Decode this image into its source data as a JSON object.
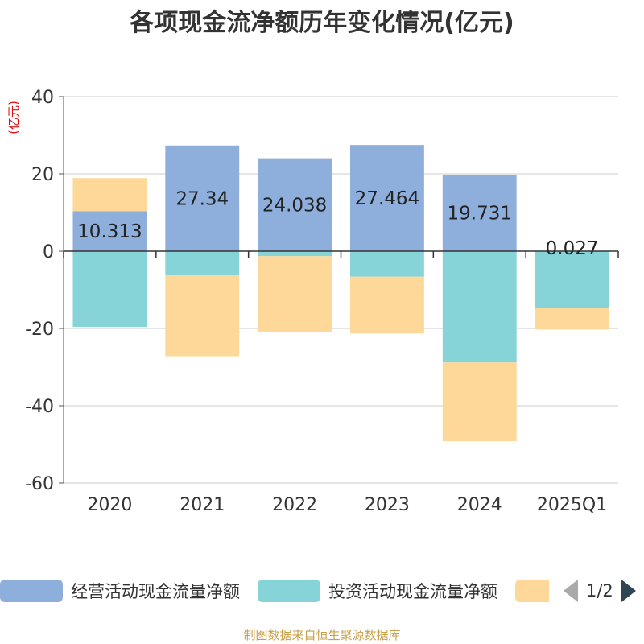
{
  "chart_data": {
    "type": "bar",
    "stacked": true,
    "title": "各项现金流净额历年变化情况(亿元)",
    "ylabel": "(亿元)",
    "ylim": [
      -60,
      40
    ],
    "yticks": [
      40,
      20,
      0,
      -20,
      -40,
      -60
    ],
    "categories": [
      "2020",
      "2021",
      "2022",
      "2023",
      "2024",
      "2025Q1"
    ],
    "grid": true,
    "legend_position": "bottom",
    "series": [
      {
        "name": "经营活动现金流量净额",
        "color": "#8eaedc",
        "values": [
          10.313,
          27.34,
          24.038,
          27.464,
          19.731,
          0.027
        ],
        "labels": [
          "10.313",
          "27.34",
          "24.038",
          "27.464",
          "19.731",
          "0.027"
        ]
      },
      {
        "name": "投资活动现金流量净额",
        "color": "#86d4d8",
        "values": [
          -19.6,
          -6.2,
          -1.3,
          -6.6,
          -28.8,
          -14.7
        ]
      },
      {
        "name": "",
        "color": "#fdd898",
        "values": [
          8.6,
          -21.0,
          -19.7,
          -14.7,
          -20.4,
          -5.6
        ]
      }
    ]
  },
  "legend": {
    "page": "1/2"
  },
  "source": "制图数据来自恒生聚源数据库"
}
